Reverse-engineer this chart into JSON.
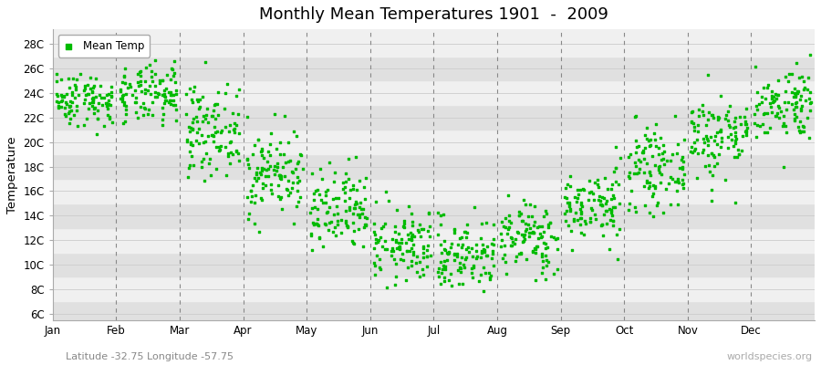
{
  "title": "Monthly Mean Temperatures 1901  -  2009",
  "ylabel": "Temperature",
  "subtitle": "Latitude -32.75 Longitude -57.75",
  "watermark": "worldspecies.org",
  "legend_label": "Mean Temp",
  "months": [
    "Jan",
    "Feb",
    "Mar",
    "Apr",
    "May",
    "Jun",
    "Jul",
    "Aug",
    "Sep",
    "Oct",
    "Nov",
    "Dec"
  ],
  "ytick_labels": [
    "6C",
    "8C",
    "10C",
    "12C",
    "14C",
    "16C",
    "18C",
    "20C",
    "22C",
    "24C",
    "26C",
    "28C"
  ],
  "ytick_values": [
    6,
    8,
    10,
    12,
    14,
    16,
    18,
    20,
    22,
    24,
    26,
    28
  ],
  "ylim": [
    5.5,
    29.2
  ],
  "xlim": [
    0.0,
    12.0
  ],
  "dot_color": "#00BB00",
  "dot_size": 3,
  "background_color": "#FFFFFF",
  "stripe_light": "#F0F0F0",
  "stripe_dark": "#E0E0E0",
  "dashed_line_color": "#888888",
  "monthly_means": [
    23.5,
    23.8,
    21.0,
    17.5,
    14.2,
    11.5,
    10.8,
    12.2,
    14.8,
    17.8,
    20.5,
    23.2
  ],
  "monthly_stds": [
    1.1,
    1.2,
    1.8,
    1.8,
    1.8,
    1.5,
    1.5,
    1.5,
    1.5,
    1.6,
    1.8,
    1.5
  ],
  "num_years": 109
}
